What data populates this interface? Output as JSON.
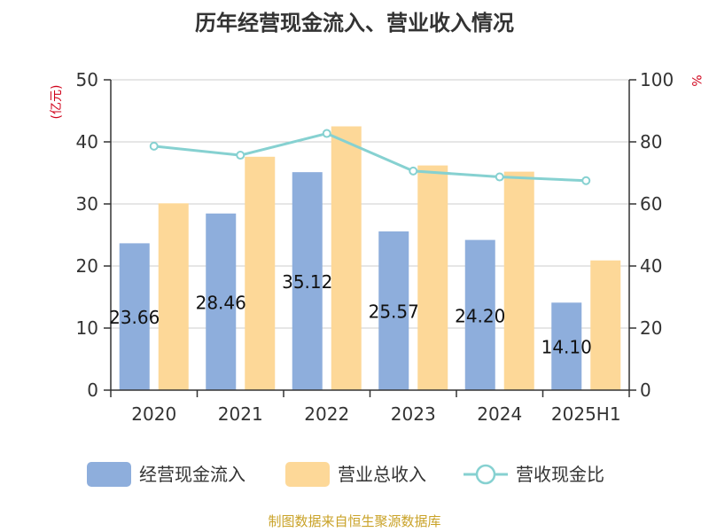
{
  "chart_data": {
    "type": "bar",
    "title": "历年经营现金流入、营业收入情况",
    "categories": [
      "2020",
      "2021",
      "2022",
      "2023",
      "2024",
      "2025H1"
    ],
    "left_axis": {
      "unit_label": "(亿元)",
      "min": 0,
      "max": 50,
      "ticks": [
        "0",
        "10",
        "20",
        "30",
        "40",
        "50"
      ]
    },
    "right_axis": {
      "unit_label": "%",
      "min": 0,
      "max": 100,
      "ticks": [
        "0",
        "20",
        "40",
        "60",
        "80",
        "100"
      ]
    },
    "grid": true,
    "legend_position": "bottom",
    "series": [
      {
        "name": "经营现金流入",
        "type": "bar",
        "axis": "left",
        "color": "#8eaedc",
        "values": [
          23.66,
          28.46,
          35.12,
          25.57,
          24.2,
          14.1
        ],
        "labels": [
          "23.66",
          "28.46",
          "35.12",
          "25.57",
          "24.20",
          "14.10"
        ]
      },
      {
        "name": "营业总收入",
        "type": "bar",
        "axis": "left",
        "color": "#fdd898",
        "values": [
          30.1,
          37.6,
          42.5,
          36.2,
          35.2,
          20.9
        ]
      },
      {
        "name": "营收现金比",
        "type": "line",
        "axis": "right",
        "color": "#86d1d1",
        "values": [
          78.6,
          75.7,
          82.7,
          70.6,
          68.7,
          67.5
        ]
      }
    ],
    "source": "制图数据来自恒生聚源数据库"
  }
}
